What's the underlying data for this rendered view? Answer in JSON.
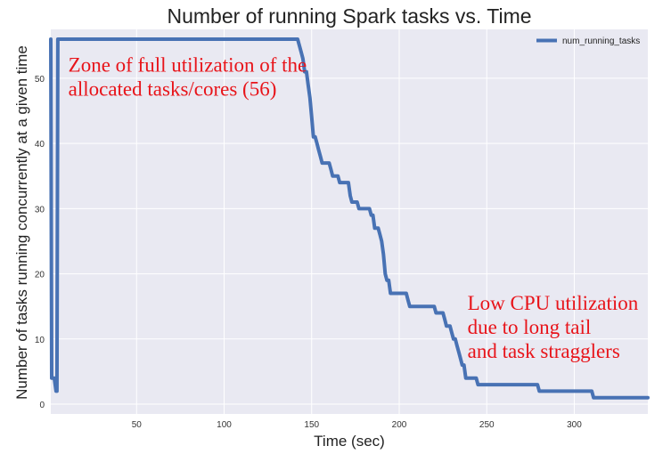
{
  "chart_data": {
    "type": "line",
    "title": "Number of running Spark tasks vs. Time",
    "xlabel": "Time (sec)",
    "ylabel": "Number of tasks running concurrently at a given time",
    "xlim": [
      1,
      342
    ],
    "ylim": [
      -1.5,
      57.5
    ],
    "xticks": [
      50,
      100,
      150,
      200,
      250,
      300
    ],
    "yticks": [
      0,
      10,
      20,
      30,
      40,
      50
    ],
    "grid": true,
    "legend_position": "top-right",
    "background": "#e9e9f2",
    "series": [
      {
        "name": "num_running_tasks",
        "color": "#4872b4",
        "x": [
          1,
          1.5,
          2,
          3,
          4,
          4.5,
          5,
          6,
          7,
          8,
          10,
          20,
          40,
          60,
          80,
          100,
          120,
          140,
          142,
          143,
          144,
          145,
          146,
          147,
          148,
          149,
          150,
          151,
          152,
          153,
          154,
          155,
          156,
          157,
          158,
          160,
          161,
          162,
          163,
          164,
          165,
          166,
          167,
          168,
          170,
          171,
          172,
          173,
          174,
          175,
          176,
          177,
          178,
          179,
          180,
          181,
          182,
          183,
          184,
          185,
          186,
          187,
          188,
          189,
          190,
          191,
          192,
          193,
          194,
          195,
          196,
          197,
          198,
          199,
          200,
          201,
          202,
          203,
          204,
          205,
          206,
          207,
          208,
          209,
          210,
          211,
          212,
          213,
          214,
          215,
          216,
          217,
          218,
          219,
          220,
          221,
          222,
          223,
          224,
          225,
          226,
          227,
          228,
          229,
          230,
          231,
          232,
          233,
          234,
          235,
          236,
          237,
          238,
          239,
          240,
          241,
          242,
          243,
          244,
          245,
          246,
          248,
          250,
          255,
          260,
          265,
          270,
          275,
          279,
          280,
          281,
          285,
          290,
          295,
          300,
          305,
          310,
          311,
          312,
          315,
          320,
          325,
          330,
          335,
          340,
          342
        ],
        "y": [
          56,
          4,
          4,
          4,
          2,
          2,
          56,
          56,
          56,
          56,
          56,
          56,
          56,
          56,
          56,
          56,
          56,
          56,
          56,
          55,
          54,
          53,
          51,
          51,
          49,
          47,
          44,
          41,
          41,
          40,
          39,
          38,
          37,
          37,
          37,
          37,
          36,
          35,
          35,
          35,
          35,
          34,
          34,
          34,
          34,
          34,
          32,
          31,
          31,
          31,
          31,
          30,
          30,
          30,
          30,
          30,
          30,
          30,
          29,
          29,
          27,
          27,
          27,
          26,
          25,
          23,
          20,
          19,
          19,
          17,
          17,
          17,
          17,
          17,
          17,
          17,
          17,
          17,
          17,
          16,
          15,
          15,
          15,
          15,
          15,
          15,
          15,
          15,
          15,
          15,
          15,
          15,
          15,
          15,
          15,
          14,
          14,
          14,
          14,
          14,
          13,
          12,
          12,
          12,
          11,
          10,
          10,
          9,
          8,
          7,
          6,
          6,
          4,
          4,
          4,
          4,
          4,
          4,
          4,
          3,
          3,
          3,
          3,
          3,
          3,
          3,
          3,
          3,
          3,
          2,
          2,
          2,
          2,
          2,
          2,
          2,
          2,
          1,
          1,
          1,
          1,
          1,
          1,
          1,
          1,
          1
        ]
      }
    ],
    "annotations": [
      {
        "lines": [
          "Zone of full utilization of the",
          "allocated tasks/cores (56)"
        ],
        "x": 11,
        "y": 51
      },
      {
        "lines": [
          "Low CPU utilization",
          "due to long tail",
          "and task stragglers"
        ],
        "x": 239,
        "y": 14.5
      }
    ]
  }
}
